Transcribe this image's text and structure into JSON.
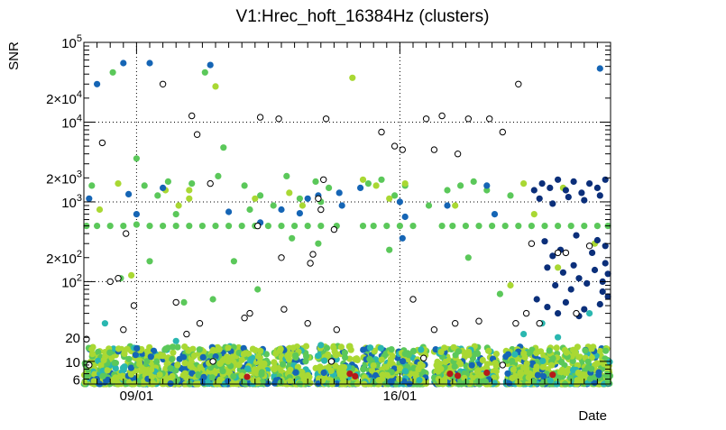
{
  "chart_data": {
    "type": "scatter",
    "title": "V1:Hrec_hoft_16384Hz (clusters)",
    "xlabel": "Date",
    "ylabel": "SNR",
    "yscale": "log",
    "ylim": [
      5.2,
      100000
    ],
    "xlim": [
      0,
      20
    ],
    "x_ticks": [
      {
        "x": 2.0,
        "label": "09/01"
      },
      {
        "x": 12.0,
        "label": "16/01"
      }
    ],
    "y_ticks": [
      {
        "value": 6,
        "label": "6"
      },
      {
        "value": 10,
        "label": "10"
      },
      {
        "value": 20,
        "label": "20"
      },
      {
        "value": 100,
        "label": "10",
        "exp": "2"
      },
      {
        "value": 200,
        "label": "2×10",
        "exp": "2"
      },
      {
        "value": 1000,
        "label": "10",
        "exp": "3"
      },
      {
        "value": 2000,
        "label": "2×10",
        "exp": "3"
      },
      {
        "value": 10000,
        "label": "10",
        "exp": "4"
      },
      {
        "value": 20000,
        "label": "2×10",
        "exp": "4"
      },
      {
        "value": 100000,
        "label": "10",
        "exp": "5"
      }
    ],
    "grid": true,
    "colors": {
      "green": "#5bc85a",
      "lime": "#a9d833",
      "navy": "#0b2f7a",
      "blue": "#1565b5",
      "teal": "#2ab7b0",
      "red": "#b51a1a",
      "open": "#000000"
    },
    "series": [
      {
        "color": "green",
        "points": [
          [
            0.1,
            500
          ],
          [
            0.5,
            500
          ],
          [
            1.0,
            500
          ],
          [
            1.5,
            500
          ],
          [
            2.0,
            520
          ],
          [
            2.5,
            500
          ],
          [
            3.0,
            500
          ],
          [
            3.5,
            500
          ],
          [
            4.0,
            500
          ],
          [
            4.5,
            500
          ],
          [
            5.0,
            500
          ],
          [
            5.5,
            500
          ],
          [
            6.0,
            500
          ],
          [
            6.5,
            500
          ],
          [
            7.0,
            500
          ],
          [
            7.5,
            500
          ],
          [
            8.0,
            500
          ],
          [
            8.5,
            500
          ],
          [
            9.0,
            500
          ],
          [
            9.6,
            500
          ],
          [
            10.6,
            500
          ],
          [
            11.0,
            500
          ],
          [
            11.5,
            500
          ],
          [
            12.0,
            500
          ],
          [
            12.5,
            500
          ],
          [
            13.6,
            500
          ],
          [
            14.0,
            500
          ],
          [
            14.5,
            500
          ],
          [
            15.0,
            500
          ],
          [
            15.5,
            500
          ],
          [
            16.0,
            500
          ],
          [
            16.5,
            500
          ],
          [
            17.0,
            500
          ],
          [
            17.5,
            500
          ],
          [
            18.0,
            500
          ],
          [
            18.5,
            500
          ],
          [
            19.0,
            500
          ],
          [
            19.5,
            500
          ],
          [
            19.9,
            500
          ],
          [
            0.3,
            1600
          ],
          [
            1.1,
            42000
          ],
          [
            2.3,
            1600
          ],
          [
            2.8,
            1200
          ],
          [
            3.2,
            1800
          ],
          [
            4.1,
            1700
          ],
          [
            4.6,
            42000
          ],
          [
            5.1,
            2100
          ],
          [
            6.1,
            1600
          ],
          [
            6.7,
            1200
          ],
          [
            7.2,
            900
          ],
          [
            7.7,
            2100
          ],
          [
            8.2,
            1100
          ],
          [
            8.8,
            1800
          ],
          [
            9.3,
            1500
          ],
          [
            10.8,
            1700
          ],
          [
            11.3,
            1900
          ],
          [
            11.8,
            1200
          ],
          [
            12.2,
            1600
          ],
          [
            13.8,
            1400
          ],
          [
            14.3,
            1600
          ],
          [
            14.8,
            1800
          ],
          [
            15.3,
            1400
          ],
          [
            16.2,
            1200
          ],
          [
            3.5,
            700
          ],
          [
            6.3,
            800
          ],
          [
            9.0,
            1000
          ],
          [
            13.1,
            900
          ],
          [
            2.0,
            3500
          ],
          [
            5.3,
            4800
          ],
          [
            4.9,
            60
          ],
          [
            6.6,
            80
          ],
          [
            8.9,
            300
          ],
          [
            11.6,
            250
          ],
          [
            14.6,
            200
          ],
          [
            2.5,
            180
          ],
          [
            15.8,
            70
          ],
          [
            1.4,
            110
          ],
          [
            7.9,
            350
          ],
          [
            5.7,
            180
          ],
          [
            3.8,
            55
          ]
        ]
      },
      {
        "color": "lime",
        "points": [
          [
            0.6,
            800
          ],
          [
            1.8,
            120
          ],
          [
            3.6,
            900
          ],
          [
            4.0,
            1400
          ],
          [
            7.8,
            1300
          ],
          [
            10.6,
            1900
          ],
          [
            11.6,
            1100
          ],
          [
            14.1,
            900
          ],
          [
            16.7,
            1700
          ],
          [
            18.2,
            1500
          ],
          [
            10.2,
            36000
          ],
          [
            4.0,
            1100
          ],
          [
            1.3,
            1700
          ],
          [
            5.0,
            28000
          ],
          [
            3.1,
            1400
          ],
          [
            6.5,
            1100
          ],
          [
            8.3,
            900
          ],
          [
            11.1,
            1600
          ],
          [
            12.2,
            1700
          ],
          [
            17.1,
            700
          ],
          [
            19.4,
            300
          ],
          [
            18.0,
            150
          ],
          [
            16.2,
            90
          ]
        ]
      },
      {
        "color": "navy",
        "points": [
          [
            17.1,
            1400
          ],
          [
            17.4,
            1700
          ],
          [
            17.7,
            1500
          ],
          [
            18.0,
            1900
          ],
          [
            18.3,
            1400
          ],
          [
            18.6,
            1800
          ],
          [
            18.9,
            1300
          ],
          [
            19.2,
            1700
          ],
          [
            19.5,
            1500
          ],
          [
            19.8,
            1900
          ],
          [
            17.3,
            1100
          ],
          [
            17.8,
            950
          ],
          [
            18.4,
            1150
          ],
          [
            19.0,
            1050
          ],
          [
            19.6,
            1200
          ],
          [
            17.5,
            320
          ],
          [
            18.1,
            250
          ],
          [
            18.7,
            380
          ],
          [
            19.3,
            230
          ],
          [
            19.8,
            170
          ],
          [
            17.6,
            150
          ],
          [
            18.2,
            130
          ],
          [
            18.8,
            110
          ],
          [
            19.4,
            140
          ],
          [
            19.9,
            125
          ],
          [
            17.9,
            90
          ],
          [
            18.5,
            80
          ],
          [
            19.1,
            95
          ],
          [
            19.7,
            75
          ],
          [
            17.2,
            60
          ],
          [
            17.6,
            48
          ],
          [
            18.3,
            55
          ],
          [
            19.0,
            45
          ],
          [
            19.6,
            52
          ],
          [
            18.0,
            40
          ],
          [
            18.8,
            37
          ],
          [
            19.9,
            65
          ],
          [
            19.7,
            100
          ],
          [
            19.8,
            280
          ],
          [
            19.5,
            330
          ],
          [
            17.8,
            210
          ],
          [
            18.6,
            160
          ]
        ]
      },
      {
        "color": "blue",
        "points": [
          [
            0.2,
            1100
          ],
          [
            1.5,
            55000
          ],
          [
            8.5,
            1100
          ],
          [
            9.7,
            1300
          ],
          [
            12.0,
            1000
          ],
          [
            13.8,
            900
          ],
          [
            2.5,
            55000
          ],
          [
            4.8,
            52000
          ],
          [
            15.3,
            1600
          ],
          [
            19.6,
            47000
          ],
          [
            0.5,
            30000
          ],
          [
            3.0,
            1500
          ],
          [
            10.5,
            1500
          ],
          [
            2.0,
            700
          ],
          [
            5.5,
            750
          ],
          [
            7.5,
            800
          ],
          [
            8.2,
            720
          ],
          [
            9.8,
            900
          ],
          [
            12.2,
            650
          ],
          [
            15.6,
            700
          ],
          [
            12.1,
            350
          ],
          [
            6.7,
            550
          ],
          [
            8.9,
            1200
          ],
          [
            1.7,
            1250
          ]
        ]
      },
      {
        "color": "teal",
        "points": [
          [
            0.8,
            30
          ],
          [
            18.0,
            20
          ],
          [
            17.4,
            30
          ],
          [
            3.5,
            18
          ],
          [
            9.0,
            16
          ],
          [
            12.8,
            14
          ],
          [
            19.2,
            40
          ],
          [
            16.7,
            22
          ]
        ]
      },
      {
        "color": "red",
        "points": [
          [
            10.1,
            7
          ],
          [
            10.3,
            6.5
          ],
          [
            13.9,
            7
          ],
          [
            14.2,
            6.6
          ],
          [
            6.2,
            6.4
          ],
          [
            15.3,
            7.2
          ],
          [
            17.8,
            6.8
          ]
        ]
      },
      {
        "color": "open",
        "points": [
          [
            0.7,
            5500
          ],
          [
            1.0,
            100
          ],
          [
            1.3,
            110
          ],
          [
            1.9,
            50
          ],
          [
            1.6,
            400
          ],
          [
            3.0,
            30000
          ],
          [
            4.1,
            12000
          ],
          [
            4.3,
            7000
          ],
          [
            4.8,
            1700
          ],
          [
            6.6,
            500
          ],
          [
            6.7,
            11500
          ],
          [
            7.4,
            11000
          ],
          [
            7.5,
            200
          ],
          [
            8.6,
            170
          ],
          [
            8.7,
            220
          ],
          [
            8.9,
            1100
          ],
          [
            9.2,
            11000
          ],
          [
            9.1,
            1900
          ],
          [
            9.0,
            800
          ],
          [
            9.5,
            450
          ],
          [
            11.3,
            7500
          ],
          [
            11.8,
            5000
          ],
          [
            12.1,
            4500
          ],
          [
            13.0,
            11000
          ],
          [
            13.3,
            4500
          ],
          [
            13.6,
            12000
          ],
          [
            14.2,
            4000
          ],
          [
            14.6,
            11000
          ],
          [
            15.4,
            11000
          ],
          [
            15.9,
            7500
          ],
          [
            16.5,
            30000
          ],
          [
            16.8,
            40
          ],
          [
            17.0,
            300
          ],
          [
            17.3,
            30
          ],
          [
            18.0,
            230
          ],
          [
            18.3,
            230
          ],
          [
            19.2,
            280
          ],
          [
            3.5,
            55
          ],
          [
            4.4,
            30
          ],
          [
            6.1,
            35
          ],
          [
            6.3,
            40
          ],
          [
            7.6,
            45
          ],
          [
            8.5,
            30
          ],
          [
            9.6,
            25
          ],
          [
            12.5,
            60
          ],
          [
            13.3,
            25
          ],
          [
            14.1,
            30
          ],
          [
            15.0,
            32
          ],
          [
            16.4,
            30
          ],
          [
            18.7,
            40
          ],
          [
            0.1,
            19
          ],
          [
            1.5,
            25
          ],
          [
            3.9,
            22
          ],
          [
            0.2,
            9
          ],
          [
            4.9,
            10
          ],
          [
            9.4,
            10
          ],
          [
            12.9,
            11
          ],
          [
            15.9,
            9
          ]
        ]
      }
    ]
  }
}
